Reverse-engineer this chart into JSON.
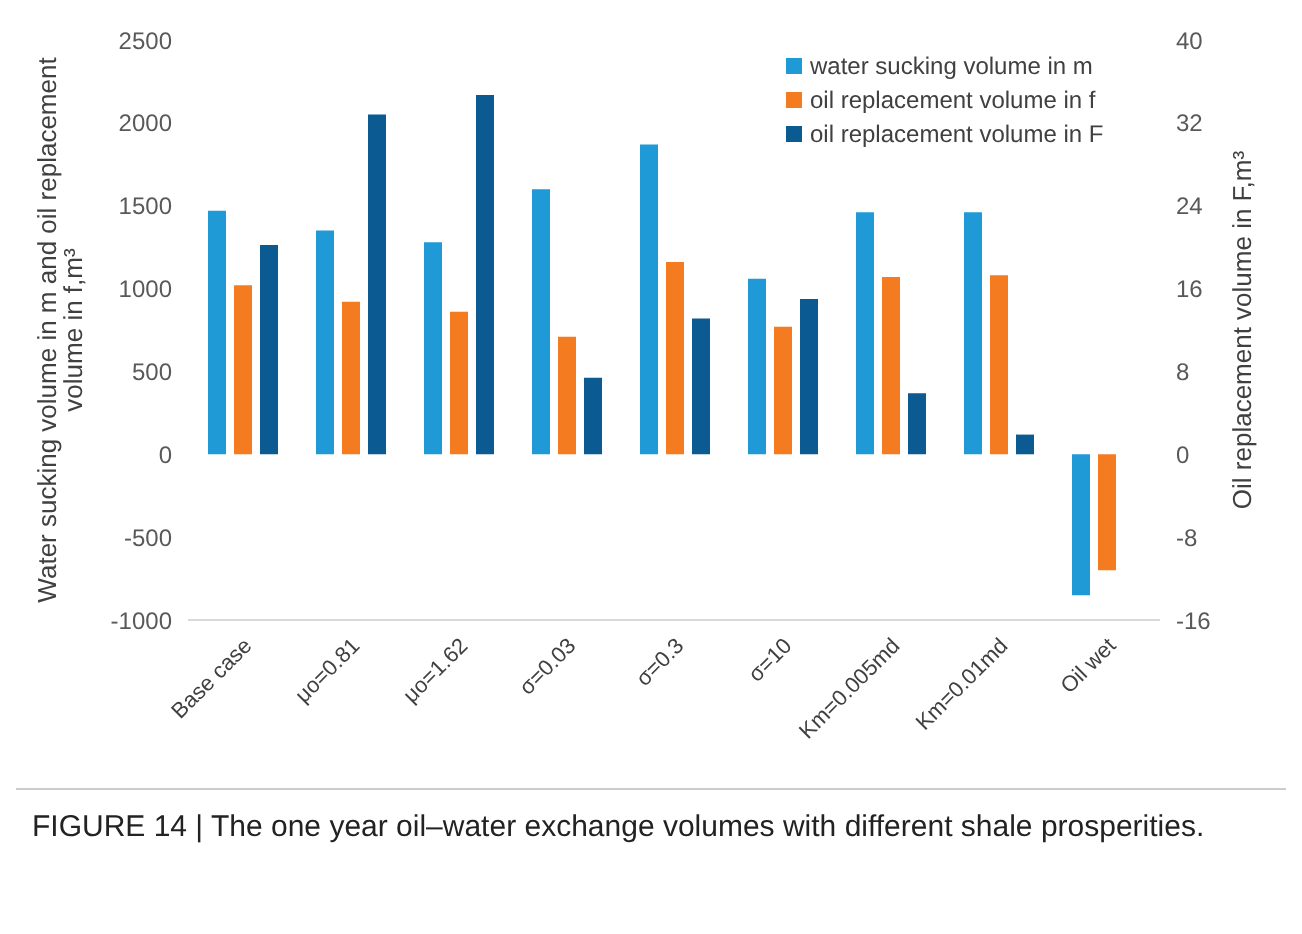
{
  "chart_data": {
    "type": "bar",
    "title": "FIGURE 14 | The one year oil–water exchange volumes with different shale prosperities.",
    "categories": [
      "Base case",
      "μo=0.81",
      "μo=1.62",
      "σ=0.03",
      "σ=0.3",
      "σ=10",
      "Km=0.005md",
      "Km=0.01md",
      "Oil wet"
    ],
    "series": [
      {
        "name": "water sucking volume in m",
        "color": "#1f9ad6",
        "values": [
          1470,
          1350,
          1280,
          1600,
          1870,
          1060,
          1460,
          1460,
          -850
        ]
      },
      {
        "name": "oil replacement volume in f",
        "color": "#f47b20",
        "values": [
          1020,
          920,
          860,
          710,
          1160,
          770,
          1070,
          1080,
          -700
        ]
      },
      {
        "name": "oil replacement volume in F",
        "color": "#0b5a92",
        "axis": "y2",
        "values": [
          20.2,
          32.8,
          34.7,
          7.4,
          13.1,
          15,
          5.9,
          1.9,
          null
        ]
      }
    ],
    "ylabel": "Water sucking volume in m and oil replacement volume in f,m³",
    "y2label": "Oil replacement volume in F,m³",
    "ylim": [
      -1000,
      2500
    ],
    "yticks": [
      -1000,
      -500,
      0,
      500,
      1000,
      1500,
      2000,
      2500
    ],
    "y2lim": [
      -16,
      40
    ],
    "y2ticks": [
      -16,
      -8,
      0,
      8,
      16,
      24,
      32,
      40
    ],
    "grid": false,
    "legend": "top right"
  }
}
